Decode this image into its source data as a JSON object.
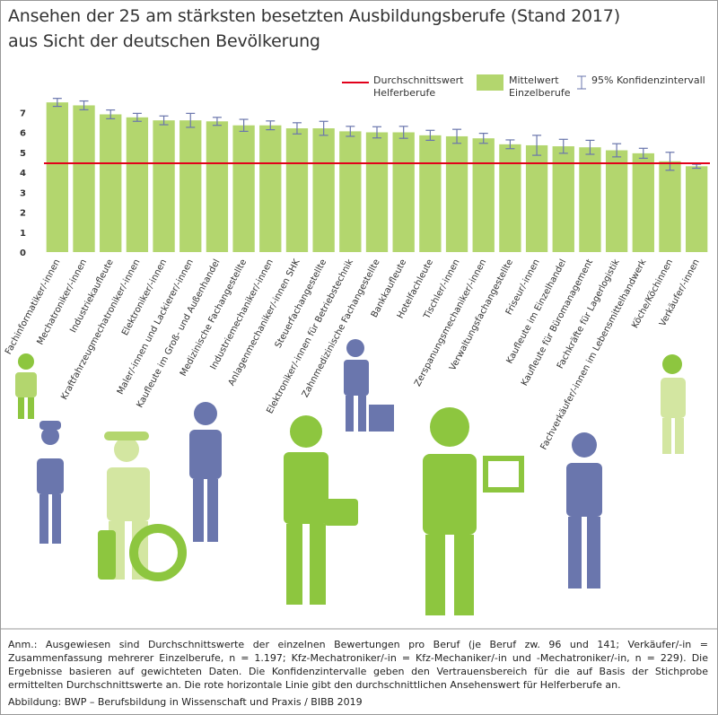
{
  "chart_data": {
    "type": "bar",
    "title": "Ansehen der 25 am stärksten besetzten Ausbildungsberufe (Stand 2017)",
    "subtitle": "aus Sicht der deutschen Bevölkerung",
    "categories": [
      "Fachinformatiker/-innen",
      "Mechatroniker/-innen",
      "Industriekaufleute",
      "Kraftfahrzeugmechatroniker/-innen",
      "Elektroniker/-innen",
      "Maler/-innen und Lackierer/-innen",
      "Kaufleute im Groß- und Außenhandel",
      "Medizinische Fachangestellte",
      "Industriemechaniker/-innen",
      "Anlagenmechaniker/-innen SHK",
      "Steuerfachangestellte",
      "Elektroniker/-innen für Betriebstechnik",
      "Zahnmedizinische Fachangestellte",
      "Bankkaufleute",
      "Hotelfachleute",
      "Tischler/-innen",
      "Zerspanungsmechaniker/-innen",
      "Verwaltungsfachangestellte",
      "Friseur/-innen",
      "Kaufleute im Einzelhandel",
      "Kaufleute für Büromanagement",
      "Fachkräfte für Lagerlogistik",
      "Fachverkäufer/-innen im Lebensmittelhandwerk",
      "Köche/Köchinnen",
      "Verkäufer/-innen"
    ],
    "series": [
      {
        "name": "Mittelwert Einzelberufe",
        "color": "#b3d66e",
        "values": [
          7.5,
          7.35,
          6.9,
          6.75,
          6.6,
          6.6,
          6.55,
          6.35,
          6.35,
          6.2,
          6.2,
          6.05,
          6.0,
          6.0,
          5.85,
          5.8,
          5.7,
          5.4,
          5.35,
          5.3,
          5.25,
          5.1,
          4.95,
          4.55,
          4.3
        ],
        "errors": [
          0.2,
          0.22,
          0.22,
          0.2,
          0.22,
          0.35,
          0.2,
          0.3,
          0.22,
          0.28,
          0.35,
          0.25,
          0.28,
          0.3,
          0.25,
          0.35,
          0.25,
          0.22,
          0.5,
          0.35,
          0.35,
          0.33,
          0.25,
          0.45,
          0.1
        ]
      }
    ],
    "reference_line": {
      "name": "Durchschnittswert Helferberufe",
      "value": 4.45,
      "color": "#e2001a"
    },
    "ci_label": "95% Konfidenzintervall",
    "ci_color": "#6a76ad",
    "ylim": [
      0,
      8
    ],
    "yticks": [
      0,
      1,
      2,
      3,
      4,
      5,
      6,
      7
    ],
    "grid": false,
    "note": "Anm.: Ausgewiesen sind Durchschnittswerte der einzelnen Bewertungen pro Beruf (je Beruf zw. 96 und 141; Verkäufer/-in = Zusammenfassung mehrerer Einzelberufe, n = 1.197; Kfz-Mechatroniker/-in = Kfz-Mechaniker/-in und -Mechatroniker/-in, n = 229). Die Ergebnisse basieren auf gewichteten Daten. Die Konfidenzintervalle geben den Vertrauensbereich für die auf Basis der Stichprobe ermittelten Durchschnittswerte an. Die rote horizontale Linie gibt den durchschnittlichen Ansehenswert für Helferberufe an.",
    "source": "Abbildung: BWP – Berufsbildung in Wissenschaft und Praxis / BIBB 2019"
  }
}
